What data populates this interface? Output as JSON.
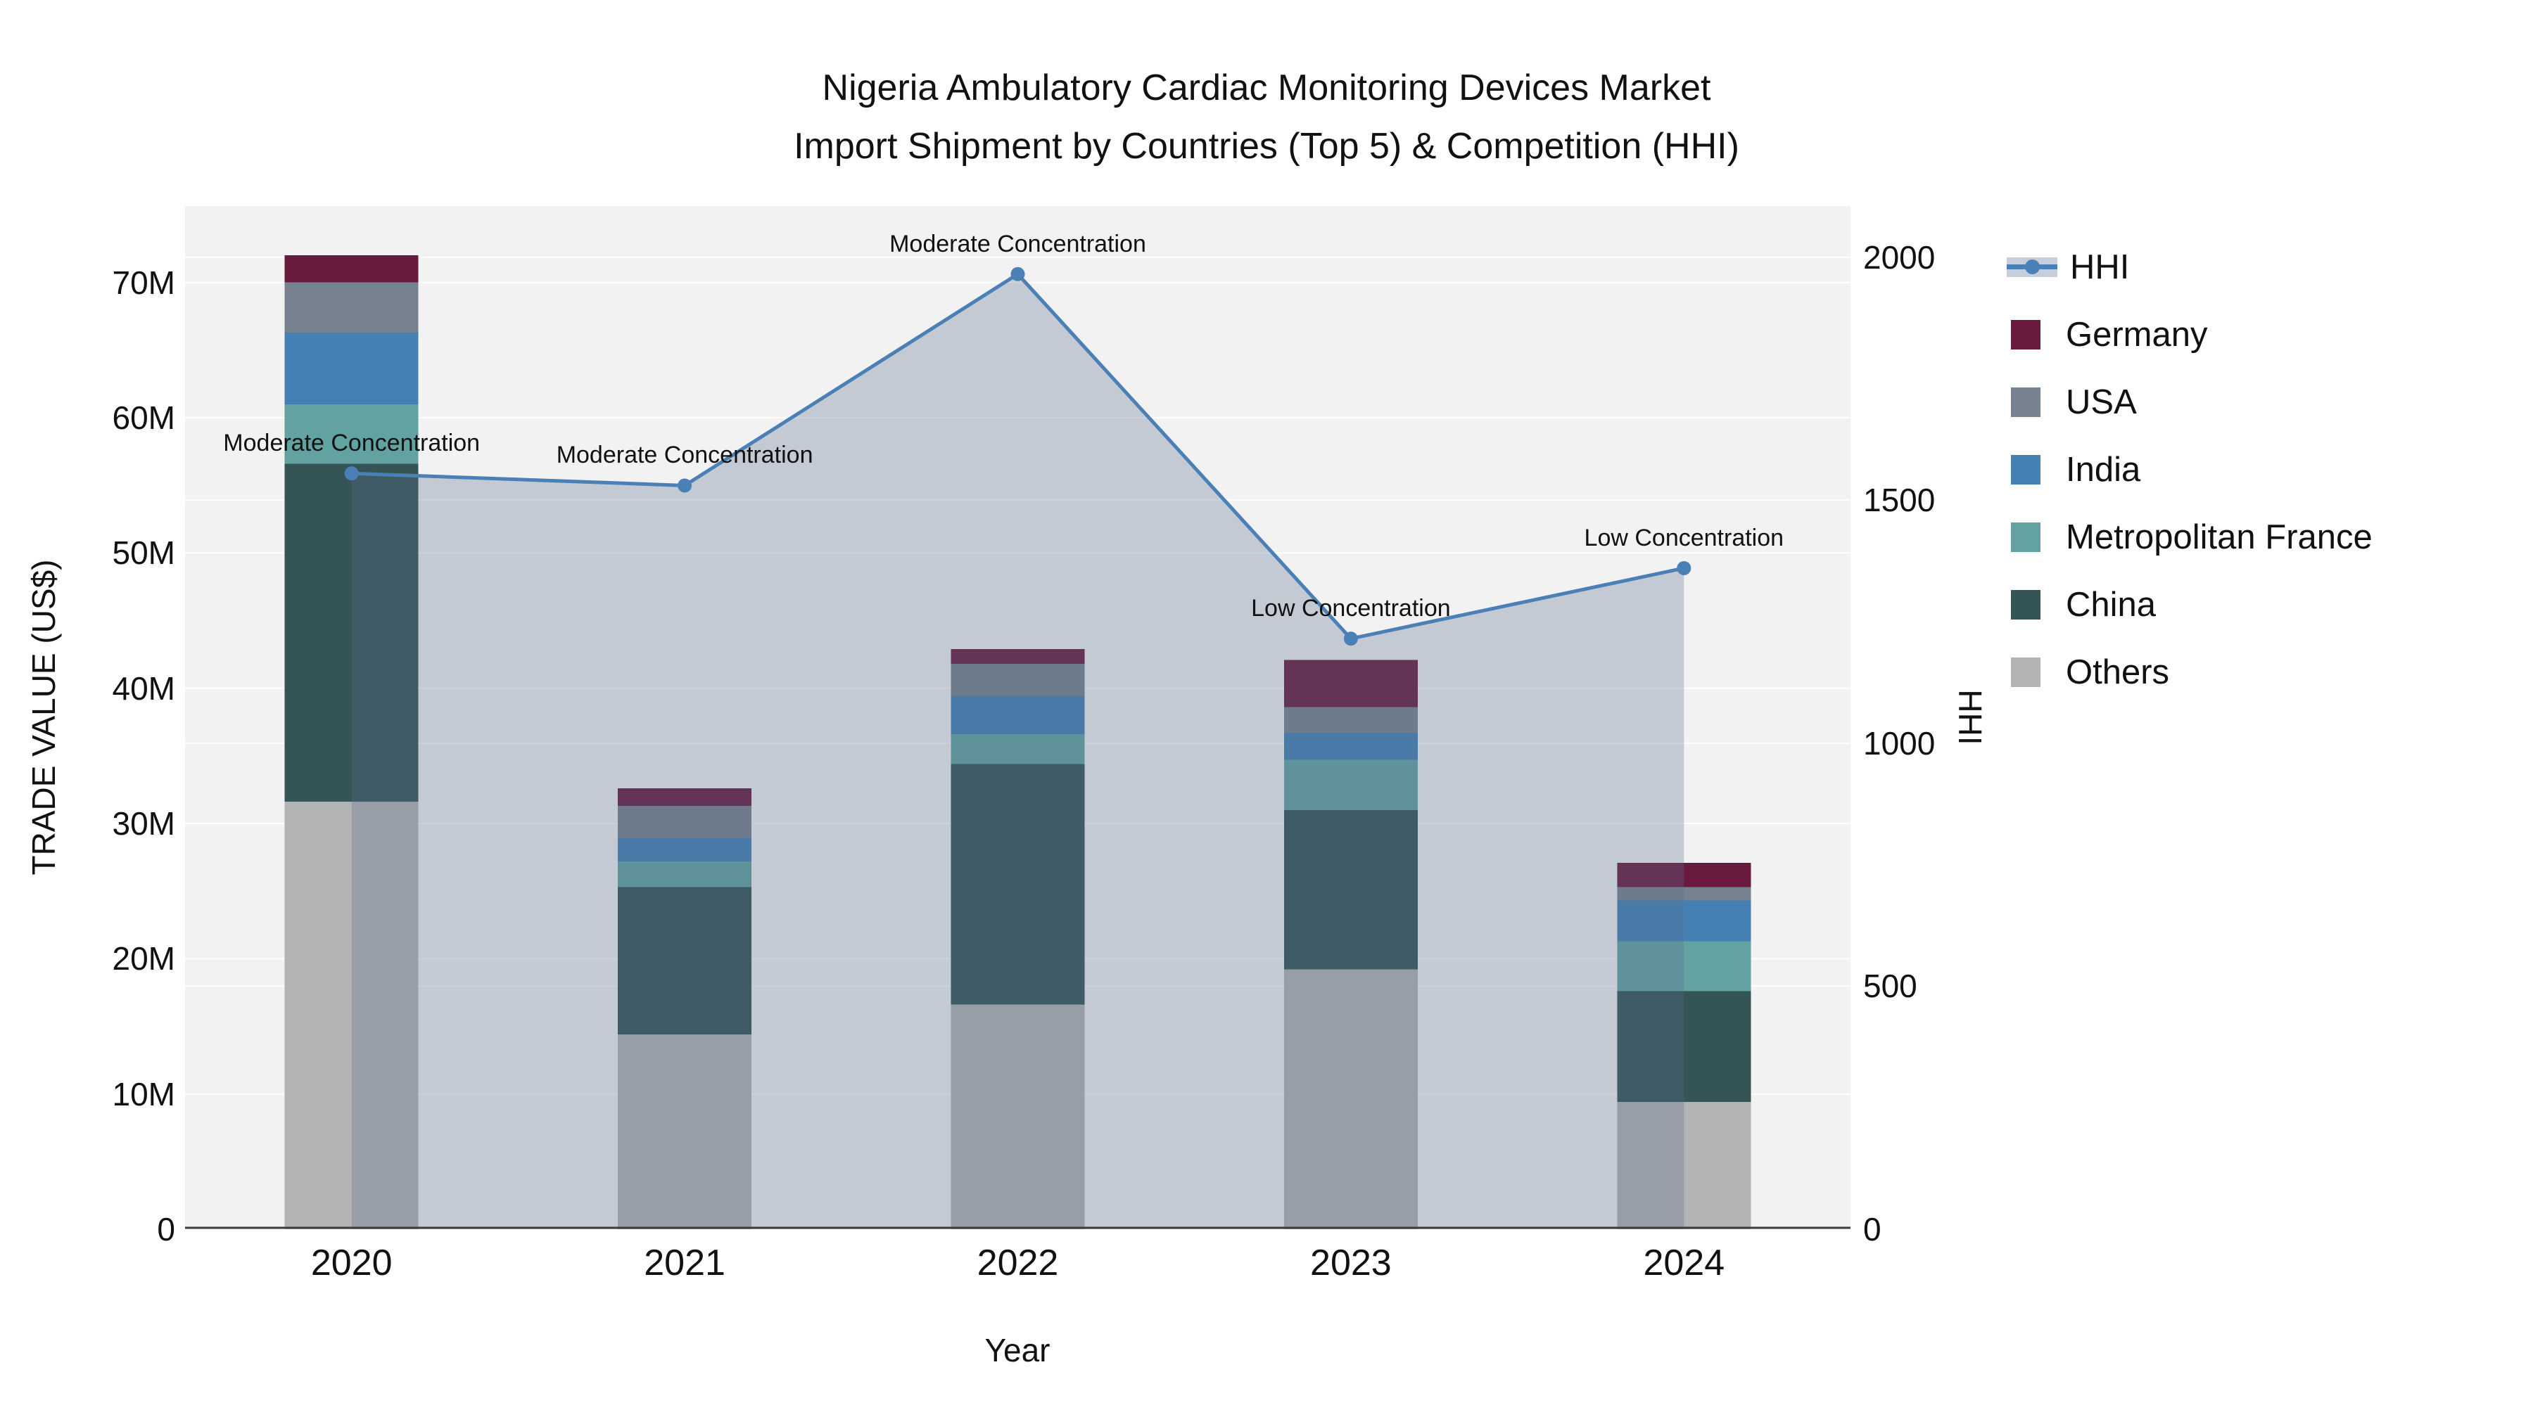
{
  "title": {
    "line1": "Nigeria Ambulatory Cardiac Monitoring Devices Market",
    "line2": "Import Shipment by Countries (Top 5) & Competition (HHI)"
  },
  "axes": {
    "y_title": "TRADE VALUE (US$)",
    "y2_title": "HHI",
    "x_title": "Year"
  },
  "colors": {
    "plot_bg": "#f2f2f2",
    "gridline": "rgba(255,255,255,0.9)",
    "zero_line": "#3d3d3d",
    "hhi_line": "#4a80b5",
    "hhi_area": "rgba(90,110,140,0.30)",
    "legend_band": "#c6cedb"
  },
  "legend": {
    "items": [
      {
        "label": "HHI",
        "type": "line",
        "color": "#4a80b5"
      },
      {
        "label": "Germany",
        "type": "box",
        "color": "#6a1a3f"
      },
      {
        "label": "USA",
        "type": "box",
        "color": "#76828f"
      },
      {
        "label": "India",
        "type": "box",
        "color": "#4480b4"
      },
      {
        "label": "Metropolitan France",
        "type": "box",
        "color": "#62a3a2"
      },
      {
        "label": "China",
        "type": "box",
        "color": "#345456"
      },
      {
        "label": "Others",
        "type": "box",
        "color": "#b2b3b4"
      }
    ]
  },
  "chart_data": {
    "type": "combo: stacked bar + line with area fill",
    "categories": [
      "2020",
      "2021",
      "2022",
      "2023",
      "2024"
    ],
    "bar_unit": "M US$",
    "series": [
      {
        "name": "Others",
        "color": "#b2b3b4",
        "values": [
          31.6,
          14.4,
          16.6,
          19.2,
          9.4
        ]
      },
      {
        "name": "China",
        "color": "#345456",
        "values": [
          25.0,
          10.9,
          17.8,
          11.8,
          8.2
        ]
      },
      {
        "name": "Metropolitan France",
        "color": "#62a3a2",
        "values": [
          4.4,
          1.9,
          2.2,
          3.7,
          3.7
        ]
      },
      {
        "name": "India",
        "color": "#4480b4",
        "values": [
          5.3,
          1.7,
          2.8,
          2.0,
          3.0
        ]
      },
      {
        "name": "USA",
        "color": "#76828f",
        "values": [
          3.7,
          2.4,
          2.4,
          1.9,
          1.0
        ]
      },
      {
        "name": "Germany",
        "color": "#6a1a3f",
        "values": [
          2.0,
          1.3,
          1.1,
          3.5,
          1.8
        ]
      }
    ],
    "bar_totals": [
      72.0,
      32.6,
      42.9,
      42.1,
      27.1
    ],
    "hhi": {
      "name": "HHI",
      "values": [
        1555,
        1530,
        1965,
        1215,
        1360
      ],
      "annotations": [
        "Moderate Concentration",
        "Moderate Concentration",
        "Moderate Concentration",
        "Low Concentration",
        "Low Concentration"
      ]
    },
    "y_ticks": [
      {
        "v": 0,
        "label": "0"
      },
      {
        "v": 10,
        "label": "10M"
      },
      {
        "v": 20,
        "label": "20M"
      },
      {
        "v": 30,
        "label": "30M"
      },
      {
        "v": 40,
        "label": "40M"
      },
      {
        "v": 50,
        "label": "50M"
      },
      {
        "v": 60,
        "label": "60M"
      },
      {
        "v": 70,
        "label": "70M"
      }
    ],
    "y2_ticks": [
      {
        "v": 0,
        "label": "0"
      },
      {
        "v": 500,
        "label": "500"
      },
      {
        "v": 1000,
        "label": "1000"
      },
      {
        "v": 1500,
        "label": "1500"
      },
      {
        "v": 2000,
        "label": "2000"
      }
    ],
    "ylim": [
      0,
      75.65
    ],
    "y2lim": [
      0,
      2105
    ],
    "grid": true,
    "legend_position": "right"
  }
}
